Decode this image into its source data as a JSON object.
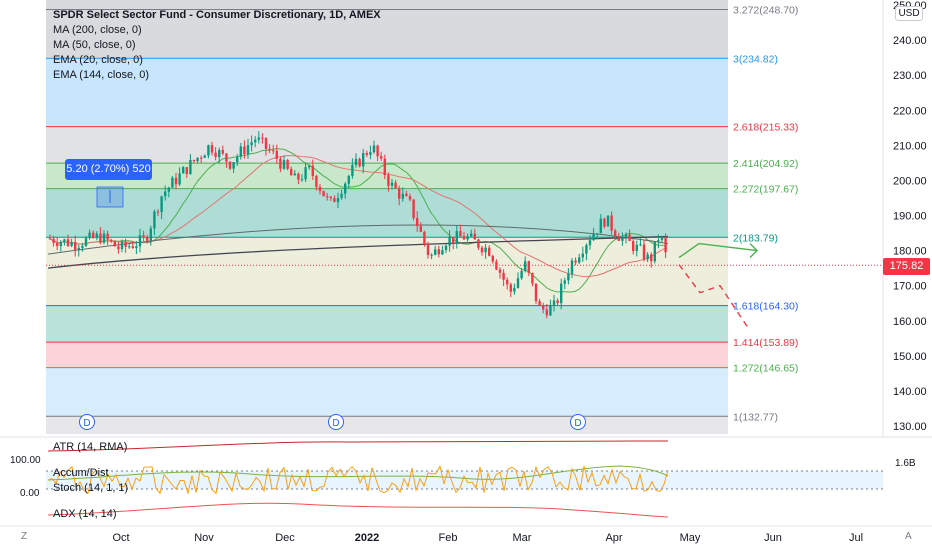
{
  "legend": {
    "title": "SPDR Select Sector Fund - Consumer Discretionary, 1D, AMEX",
    "lines": [
      "MA (200, close, 0)",
      "MA (50, close, 0)",
      "EMA (20, close, 0)",
      "EMA (144, close, 0)"
    ]
  },
  "currency": "USD",
  "measure_label": "5.20 (2.70%) 520",
  "last_price": "175.82",
  "fib_levels": [
    {
      "label": "3.272(248.70)",
      "value": 248.7,
      "color": "#787b86"
    },
    {
      "label": "3(234.82)",
      "value": 234.82,
      "color": "#2196f3"
    },
    {
      "label": "2.618(215.33)",
      "value": 215.33,
      "color": "#f23645"
    },
    {
      "label": "2.414(204.92)",
      "value": 204.92,
      "color": "#4caf50"
    },
    {
      "label": "2.272(197.67)",
      "value": 197.67,
      "color": "#4caf50"
    },
    {
      "label": "2(183.79)",
      "value": 183.79,
      "color": "#089981"
    },
    {
      "label": "1.618(164.30)",
      "value": 164.3,
      "color": "#2962ff"
    },
    {
      "label": "1.414(153.89)",
      "value": 153.89,
      "color": "#f23645"
    },
    {
      "label": "1.272(146.65)",
      "value": 146.65,
      "color": "#4caf50"
    },
    {
      "label": "1(132.77)",
      "value": 132.77,
      "color": "#787b86"
    }
  ],
  "y_ticks": [
    "250.00",
    "240.00",
    "230.00",
    "220.00",
    "210.00",
    "200.00",
    "190.00",
    "180.00",
    "170.00",
    "160.00",
    "150.00",
    "140.00",
    "130.00"
  ],
  "y_tick_values": [
    250,
    240,
    230,
    220,
    210,
    200,
    190,
    180,
    170,
    160,
    150,
    140,
    130
  ],
  "x_ticks": [
    "Oct",
    "Nov",
    "Dec",
    "2022",
    "Feb",
    "Mar",
    "Apr",
    "May",
    "Jun",
    "Jul"
  ],
  "dividend_marker": "D",
  "indicators": {
    "atr": "ATR (14, RMA)",
    "accum": "Accum/Dist",
    "stoch": "Stoch (14, 1, 1)",
    "adx": "ADX (14, 14)",
    "stoch_top": "100.00",
    "stoch_bottom": "0.00",
    "ad_value": "1.6B"
  },
  "corner_left": "Z",
  "corner_right": "A",
  "colors": {
    "up": "#089981",
    "down": "#f23645",
    "ma200": "#434651",
    "ma50": "#e57373",
    "ema20": "#4caf50",
    "ema144": "#5d6b6b",
    "stoch": "#ff9800",
    "accum": "#7cb342",
    "atr": "#c62828"
  }
}
